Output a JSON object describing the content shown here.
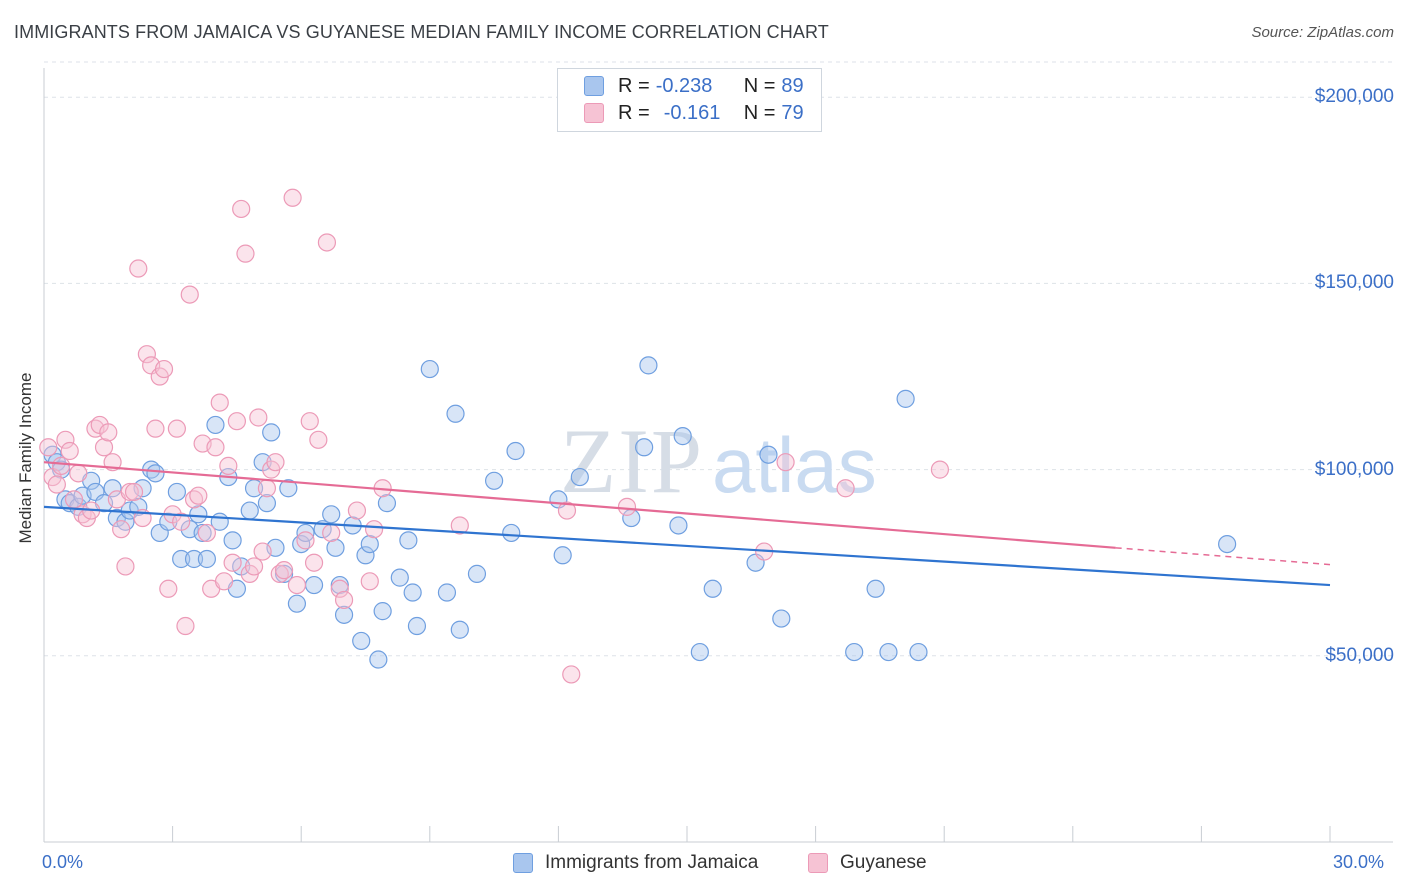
{
  "header": {
    "title": "IMMIGRANTS FROM JAMAICA VS GUYANESE MEDIAN FAMILY INCOME CORRELATION CHART",
    "source": "Source: ZipAtlas.com"
  },
  "legend": {
    "rows": [
      {
        "r_label": "R = ",
        "r_value": "-0.238",
        "n_label": "N = ",
        "n_value": "89"
      },
      {
        "r_label": "R = ",
        "r_value": "-0.161",
        "n_label": "N = ",
        "n_value": "79"
      }
    ]
  },
  "watermark": {
    "zip": "ZIP",
    "atlas": "atlas"
  },
  "chart_data": {
    "type": "scatter",
    "ylabel": "Median Family Income",
    "xlim": [
      0,
      30
    ],
    "ylim": [
      0,
      210000
    ],
    "x_tick_labels": [
      "0.0%",
      "30.0%"
    ],
    "y_ticks": [
      {
        "value": 50000,
        "label": "$50,000"
      },
      {
        "value": 100000,
        "label": "$100,000"
      },
      {
        "value": 150000,
        "label": "$150,000"
      },
      {
        "value": 200000,
        "label": "$200,000"
      }
    ],
    "grid": true,
    "series": [
      {
        "name": "Immigrants from Jamaica",
        "color": "#6f9fe0",
        "fill": "#a9c6ee",
        "trend_color": "#2f74d0",
        "trend": {
          "x": [
            0,
            30
          ],
          "y": [
            90000,
            69000
          ]
        },
        "points": [
          [
            0.2,
            104000
          ],
          [
            0.3,
            102000
          ],
          [
            0.4,
            100000
          ],
          [
            0.5,
            92000
          ],
          [
            0.6,
            91000
          ],
          [
            0.8,
            90000
          ],
          [
            0.9,
            93000
          ],
          [
            1.1,
            97000
          ],
          [
            1.2,
            94000
          ],
          [
            1.4,
            91000
          ],
          [
            1.6,
            95000
          ],
          [
            1.7,
            87000
          ],
          [
            1.9,
            86000
          ],
          [
            2.0,
            89000
          ],
          [
            2.2,
            90000
          ],
          [
            2.3,
            95000
          ],
          [
            2.5,
            100000
          ],
          [
            2.6,
            99000
          ],
          [
            2.7,
            83000
          ],
          [
            2.9,
            86000
          ],
          [
            3.1,
            94000
          ],
          [
            3.2,
            76000
          ],
          [
            3.4,
            84000
          ],
          [
            3.5,
            76000
          ],
          [
            3.6,
            88000
          ],
          [
            3.7,
            83000
          ],
          [
            3.8,
            76000
          ],
          [
            4.0,
            112000
          ],
          [
            4.1,
            86000
          ],
          [
            4.3,
            98000
          ],
          [
            4.4,
            81000
          ],
          [
            4.5,
            68000
          ],
          [
            4.6,
            74000
          ],
          [
            4.8,
            89000
          ],
          [
            4.9,
            95000
          ],
          [
            5.1,
            102000
          ],
          [
            5.2,
            91000
          ],
          [
            5.3,
            110000
          ],
          [
            5.4,
            79000
          ],
          [
            5.6,
            72000
          ],
          [
            5.7,
            95000
          ],
          [
            5.9,
            64000
          ],
          [
            6.0,
            80000
          ],
          [
            6.1,
            83000
          ],
          [
            6.3,
            69000
          ],
          [
            6.5,
            84000
          ],
          [
            6.7,
            88000
          ],
          [
            6.8,
            79000
          ],
          [
            6.9,
            69000
          ],
          [
            7.0,
            61000
          ],
          [
            7.2,
            85000
          ],
          [
            7.4,
            54000
          ],
          [
            7.5,
            77000
          ],
          [
            7.6,
            80000
          ],
          [
            7.8,
            49000
          ],
          [
            7.9,
            62000
          ],
          [
            8.0,
            91000
          ],
          [
            8.3,
            71000
          ],
          [
            8.5,
            81000
          ],
          [
            8.6,
            67000
          ],
          [
            8.7,
            58000
          ],
          [
            9.0,
            127000
          ],
          [
            9.4,
            67000
          ],
          [
            9.6,
            115000
          ],
          [
            9.7,
            57000
          ],
          [
            10.1,
            72000
          ],
          [
            10.5,
            97000
          ],
          [
            10.9,
            83000
          ],
          [
            11.0,
            105000
          ],
          [
            12.0,
            92000
          ],
          [
            12.1,
            77000
          ],
          [
            12.5,
            98000
          ],
          [
            13.7,
            87000
          ],
          [
            14.0,
            106000
          ],
          [
            14.1,
            128000
          ],
          [
            14.8,
            85000
          ],
          [
            14.9,
            109000
          ],
          [
            15.3,
            51000
          ],
          [
            15.6,
            68000
          ],
          [
            16.6,
            75000
          ],
          [
            16.9,
            104000
          ],
          [
            17.2,
            60000
          ],
          [
            18.9,
            51000
          ],
          [
            19.4,
            68000
          ],
          [
            19.7,
            51000
          ],
          [
            20.1,
            119000
          ],
          [
            20.4,
            51000
          ],
          [
            27.6,
            80000
          ]
        ]
      },
      {
        "name": "Guyanese",
        "color": "#ec9ab7",
        "fill": "#f6c3d4",
        "trend_color": "#e56b95",
        "trend": {
          "x": [
            0,
            25
          ],
          "y": [
            102000,
            79000
          ]
        },
        "trend_dashed": {
          "x": [
            25,
            30
          ],
          "y": [
            79000,
            74500
          ]
        },
        "points": [
          [
            0.1,
            106000
          ],
          [
            0.2,
            98000
          ],
          [
            0.3,
            96000
          ],
          [
            0.4,
            101000
          ],
          [
            0.5,
            108000
          ],
          [
            0.6,
            105000
          ],
          [
            0.7,
            92000
          ],
          [
            0.8,
            99000
          ],
          [
            0.9,
            88000
          ],
          [
            1.0,
            87000
          ],
          [
            1.1,
            89000
          ],
          [
            1.2,
            111000
          ],
          [
            1.3,
            112000
          ],
          [
            1.4,
            106000
          ],
          [
            1.5,
            110000
          ],
          [
            1.6,
            102000
          ],
          [
            1.7,
            92000
          ],
          [
            1.8,
            84000
          ],
          [
            1.9,
            74000
          ],
          [
            2.0,
            94000
          ],
          [
            2.1,
            94000
          ],
          [
            2.2,
            154000
          ],
          [
            2.3,
            87000
          ],
          [
            2.4,
            131000
          ],
          [
            2.5,
            128000
          ],
          [
            2.6,
            111000
          ],
          [
            2.7,
            125000
          ],
          [
            2.8,
            127000
          ],
          [
            2.9,
            68000
          ],
          [
            3.0,
            88000
          ],
          [
            3.1,
            111000
          ],
          [
            3.2,
            86000
          ],
          [
            3.3,
            58000
          ],
          [
            3.4,
            147000
          ],
          [
            3.5,
            92000
          ],
          [
            3.6,
            93000
          ],
          [
            3.7,
            107000
          ],
          [
            3.8,
            83000
          ],
          [
            3.9,
            68000
          ],
          [
            4.0,
            106000
          ],
          [
            4.1,
            118000
          ],
          [
            4.2,
            70000
          ],
          [
            4.3,
            101000
          ],
          [
            4.4,
            75000
          ],
          [
            4.5,
            113000
          ],
          [
            4.6,
            170000
          ],
          [
            4.7,
            158000
          ],
          [
            4.8,
            72000
          ],
          [
            4.9,
            74000
          ],
          [
            5.0,
            114000
          ],
          [
            5.1,
            78000
          ],
          [
            5.2,
            95000
          ],
          [
            5.3,
            100000
          ],
          [
            5.4,
            102000
          ],
          [
            5.5,
            72000
          ],
          [
            5.6,
            73000
          ],
          [
            5.8,
            173000
          ],
          [
            5.9,
            69000
          ],
          [
            6.1,
            81000
          ],
          [
            6.2,
            113000
          ],
          [
            6.3,
            75000
          ],
          [
            6.4,
            108000
          ],
          [
            6.6,
            161000
          ],
          [
            6.7,
            83000
          ],
          [
            6.9,
            68000
          ],
          [
            7.0,
            65000
          ],
          [
            7.3,
            89000
          ],
          [
            7.6,
            70000
          ],
          [
            7.7,
            84000
          ],
          [
            7.9,
            95000
          ],
          [
            9.7,
            85000
          ],
          [
            12.2,
            89000
          ],
          [
            12.3,
            45000
          ],
          [
            13.6,
            90000
          ],
          [
            16.8,
            78000
          ],
          [
            17.3,
            102000
          ],
          [
            18.7,
            95000
          ],
          [
            20.9,
            100000
          ]
        ]
      }
    ]
  }
}
